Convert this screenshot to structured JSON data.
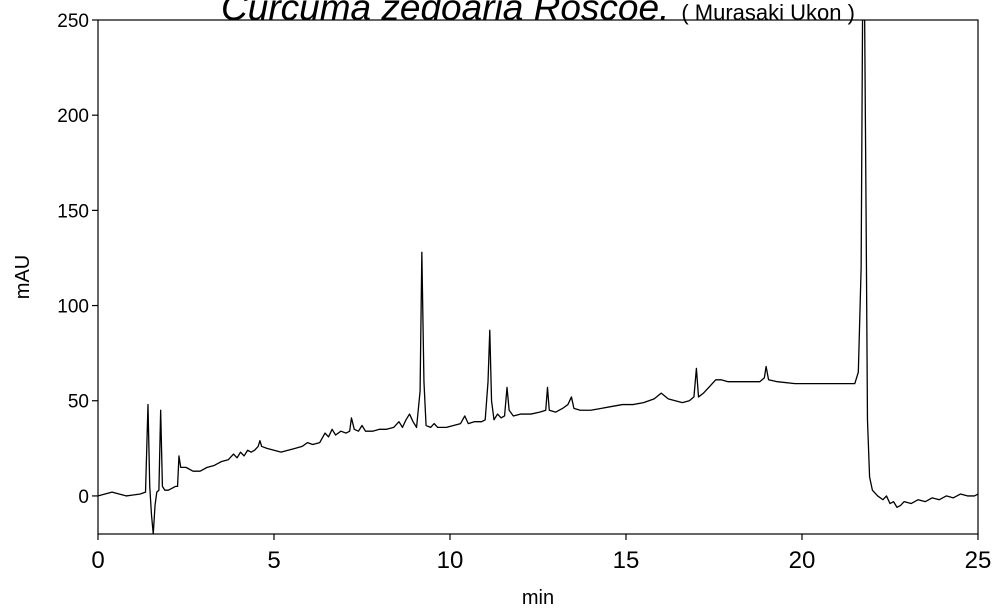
{
  "chart_data": {
    "type": "line",
    "title": "Curcuma zedoaria Roscoe.",
    "subtitle": "( Murasaki Ukon )",
    "xlabel": "min",
    "ylabel": "mAU",
    "xlim": [
      0,
      25
    ],
    "ylim": [
      -20,
      250
    ],
    "x_ticks": [
      "0",
      "5",
      "10",
      "15",
      "20",
      "25"
    ],
    "y_ticks": [
      "0",
      "50",
      "100",
      "150",
      "200",
      "250"
    ],
    "grid": false,
    "series": [
      {
        "color": "#000000",
        "points": [
          [
            0,
            0
          ],
          [
            0.2,
            1
          ],
          [
            0.4,
            2
          ],
          [
            0.6,
            1
          ],
          [
            0.8,
            0
          ],
          [
            1.0,
            0.5
          ],
          [
            1.2,
            1
          ],
          [
            1.35,
            2
          ],
          [
            1.42,
            48
          ],
          [
            1.47,
            5
          ],
          [
            1.52,
            -10
          ],
          [
            1.57,
            -20
          ],
          [
            1.62,
            -5
          ],
          [
            1.67,
            2
          ],
          [
            1.73,
            3
          ],
          [
            1.78,
            45
          ],
          [
            1.83,
            5
          ],
          [
            1.9,
            3
          ],
          [
            2.0,
            3
          ],
          [
            2.1,
            4
          ],
          [
            2.2,
            5
          ],
          [
            2.26,
            5
          ],
          [
            2.3,
            21
          ],
          [
            2.35,
            15
          ],
          [
            2.5,
            15
          ],
          [
            2.7,
            13
          ],
          [
            2.9,
            13
          ],
          [
            3.1,
            15
          ],
          [
            3.3,
            16
          ],
          [
            3.5,
            18
          ],
          [
            3.7,
            19
          ],
          [
            3.85,
            22
          ],
          [
            3.95,
            20
          ],
          [
            4.05,
            23
          ],
          [
            4.15,
            21
          ],
          [
            4.25,
            24
          ],
          [
            4.35,
            23
          ],
          [
            4.45,
            24
          ],
          [
            4.55,
            26
          ],
          [
            4.6,
            29
          ],
          [
            4.65,
            26
          ],
          [
            4.8,
            25
          ],
          [
            5.0,
            24
          ],
          [
            5.2,
            23
          ],
          [
            5.4,
            24
          ],
          [
            5.6,
            25
          ],
          [
            5.8,
            26
          ],
          [
            5.95,
            28
          ],
          [
            6.1,
            27
          ],
          [
            6.3,
            28
          ],
          [
            6.45,
            33
          ],
          [
            6.55,
            31
          ],
          [
            6.65,
            35
          ],
          [
            6.75,
            32
          ],
          [
            6.9,
            34
          ],
          [
            7.05,
            33
          ],
          [
            7.15,
            34
          ],
          [
            7.2,
            41
          ],
          [
            7.28,
            35
          ],
          [
            7.4,
            34
          ],
          [
            7.5,
            37
          ],
          [
            7.6,
            34
          ],
          [
            7.8,
            34
          ],
          [
            8.0,
            35
          ],
          [
            8.2,
            35
          ],
          [
            8.4,
            36
          ],
          [
            8.55,
            39
          ],
          [
            8.65,
            36
          ],
          [
            8.75,
            40
          ],
          [
            8.85,
            43
          ],
          [
            8.95,
            39
          ],
          [
            9.05,
            36
          ],
          [
            9.15,
            55
          ],
          [
            9.2,
            128
          ],
          [
            9.26,
            60
          ],
          [
            9.32,
            37
          ],
          [
            9.45,
            36
          ],
          [
            9.55,
            38
          ],
          [
            9.65,
            36
          ],
          [
            9.9,
            36
          ],
          [
            10.1,
            37
          ],
          [
            10.3,
            38
          ],
          [
            10.42,
            42
          ],
          [
            10.52,
            38
          ],
          [
            10.7,
            39
          ],
          [
            10.9,
            39
          ],
          [
            11.0,
            40
          ],
          [
            11.08,
            60
          ],
          [
            11.13,
            87
          ],
          [
            11.18,
            50
          ],
          [
            11.25,
            40
          ],
          [
            11.35,
            43
          ],
          [
            11.45,
            41
          ],
          [
            11.55,
            42
          ],
          [
            11.62,
            57
          ],
          [
            11.68,
            45
          ],
          [
            11.8,
            42
          ],
          [
            12.0,
            43
          ],
          [
            12.3,
            43
          ],
          [
            12.55,
            44
          ],
          [
            12.72,
            45
          ],
          [
            12.77,
            57
          ],
          [
            12.82,
            45
          ],
          [
            13.0,
            44
          ],
          [
            13.2,
            46
          ],
          [
            13.35,
            48
          ],
          [
            13.45,
            52
          ],
          [
            13.52,
            46
          ],
          [
            13.7,
            45
          ],
          [
            14.0,
            45
          ],
          [
            14.3,
            46
          ],
          [
            14.6,
            47
          ],
          [
            14.9,
            48
          ],
          [
            15.2,
            48
          ],
          [
            15.5,
            49
          ],
          [
            15.8,
            51
          ],
          [
            16.0,
            54
          ],
          [
            16.2,
            51
          ],
          [
            16.4,
            50
          ],
          [
            16.6,
            49
          ],
          [
            16.8,
            50
          ],
          [
            16.93,
            52
          ],
          [
            17.0,
            67
          ],
          [
            17.06,
            52
          ],
          [
            17.2,
            54
          ],
          [
            17.4,
            58
          ],
          [
            17.55,
            61
          ],
          [
            17.7,
            61
          ],
          [
            17.9,
            60
          ],
          [
            18.2,
            60
          ],
          [
            18.5,
            60
          ],
          [
            18.8,
            60
          ],
          [
            18.93,
            62
          ],
          [
            18.98,
            68
          ],
          [
            19.05,
            61
          ],
          [
            19.3,
            60
          ],
          [
            19.8,
            59
          ],
          [
            20.3,
            59
          ],
          [
            20.8,
            59
          ],
          [
            21.2,
            59
          ],
          [
            21.5,
            59
          ],
          [
            21.6,
            65
          ],
          [
            21.68,
            120
          ],
          [
            21.72,
            250
          ],
          [
            21.78,
            250
          ],
          [
            21.82,
            150
          ],
          [
            21.86,
            40
          ],
          [
            21.92,
            10
          ],
          [
            22.0,
            3
          ],
          [
            22.15,
            0
          ],
          [
            22.3,
            -2
          ],
          [
            22.4,
            0
          ],
          [
            22.5,
            -4
          ],
          [
            22.6,
            -3
          ],
          [
            22.7,
            -6
          ],
          [
            22.8,
            -5
          ],
          [
            22.9,
            -3
          ],
          [
            23.1,
            -4
          ],
          [
            23.3,
            -2
          ],
          [
            23.5,
            -3
          ],
          [
            23.7,
            -1
          ],
          [
            23.9,
            -2
          ],
          [
            24.1,
            0
          ],
          [
            24.3,
            -1
          ],
          [
            24.5,
            1
          ],
          [
            24.7,
            0
          ],
          [
            24.9,
            0
          ],
          [
            25.0,
            1
          ]
        ]
      }
    ]
  }
}
